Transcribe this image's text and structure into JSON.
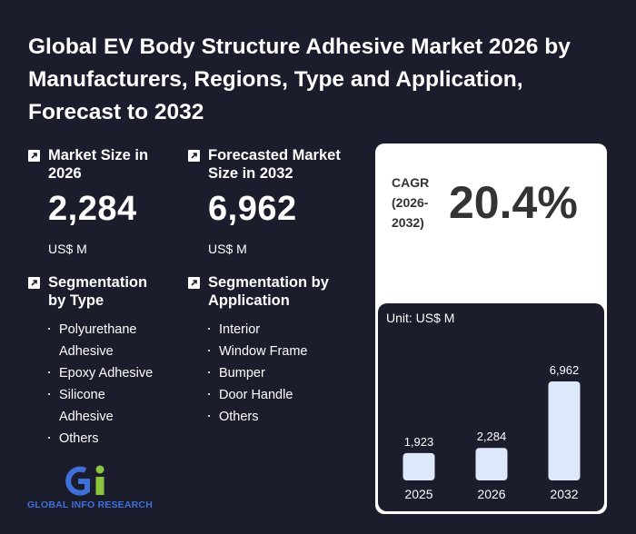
{
  "title": "Global EV Body Structure Adhesive Market 2026 by Manufacturers, Regions, Type and Application, Forecast to 2032",
  "market_size": {
    "label": "Market Size in 2026",
    "value": "2,284",
    "unit": "US$ M"
  },
  "forecast": {
    "label": "Forecasted Market Size in 2032",
    "value": "6,962",
    "unit": "US$ M"
  },
  "segmentation_type": {
    "label": "Segmentation by Type",
    "items": [
      "Polyurethane Adhesive",
      "Epoxy Adhesive",
      "Silicone Adhesive",
      "Others"
    ]
  },
  "segmentation_application": {
    "label": "Segmentation by Application",
    "items": [
      "Interior",
      "Window Frame",
      "Bumper",
      "Door Handle",
      "Others"
    ]
  },
  "cagr": {
    "label": "CAGR (2026-2032)",
    "value": "20.4%"
  },
  "logo": {
    "text": "GLOBAL INFO RESEARCH"
  },
  "chart_data": {
    "type": "bar",
    "unit_label": "Unit: US$ M",
    "categories": [
      "2025",
      "2026",
      "2032"
    ],
    "values": [
      1923,
      2284,
      6962
    ],
    "value_labels": [
      "1,923",
      "2,284",
      "6,962"
    ],
    "bar_color": "#dde9fb",
    "ylim": [
      0,
      6962
    ]
  }
}
